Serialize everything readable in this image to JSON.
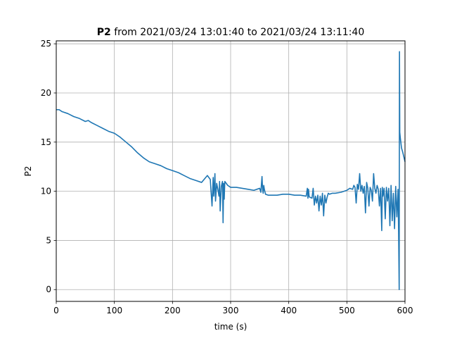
{
  "chart_data": {
    "type": "line",
    "title_series": "P2",
    "title_rest": " from 2021/03/24 13:01:40 to 2021/03/24 13:11:40",
    "xlabel": "time (s)",
    "ylabel": "P2",
    "xlim": [
      0,
      600
    ],
    "ylim": [
      -1.2,
      25.3
    ],
    "x_ticks": [
      0,
      100,
      200,
      300,
      400,
      500,
      600
    ],
    "y_ticks": [
      0,
      5,
      10,
      15,
      20,
      25
    ],
    "grid": true,
    "line_color": "#1f77b4",
    "series": [
      {
        "x": [
          0,
          5,
          10,
          20,
          30,
          40,
          50,
          55,
          60,
          70,
          80,
          90,
          100,
          110,
          120,
          130,
          140,
          150,
          160,
          170,
          180,
          190,
          200,
          210,
          220,
          230,
          240,
          250,
          260,
          265,
          268,
          270,
          271,
          272,
          273,
          274,
          276,
          278,
          280,
          281,
          282,
          284,
          286,
          287,
          288,
          289,
          290,
          295,
          300,
          310,
          320,
          330,
          340,
          350,
          352,
          354,
          355,
          356,
          357,
          358,
          360,
          365,
          370,
          380,
          390,
          400,
          410,
          420,
          430,
          432,
          433,
          434,
          435,
          436,
          440,
          442,
          444,
          446,
          448,
          450,
          452,
          454,
          456,
          458,
          460,
          462,
          464,
          466,
          468,
          470,
          475,
          480,
          490,
          500,
          505,
          510,
          512,
          514,
          516,
          518,
          520,
          522,
          524,
          526,
          528,
          530,
          532,
          534,
          536,
          538,
          540,
          542,
          544,
          546,
          548,
          550,
          552,
          554,
          556,
          558,
          560,
          561,
          562,
          564,
          566,
          568,
          570,
          572,
          574,
          576,
          578,
          580,
          582,
          584,
          586,
          588,
          589,
          590,
          590.5,
          591,
          592,
          594,
          596,
          598,
          600
        ],
        "y": [
          18.3,
          18.3,
          18.1,
          17.9,
          17.6,
          17.4,
          17.1,
          17.2,
          17.0,
          16.7,
          16.4,
          16.1,
          15.9,
          15.5,
          15.0,
          14.5,
          13.9,
          13.4,
          13.0,
          12.8,
          12.6,
          12.3,
          12.1,
          11.9,
          11.6,
          11.3,
          11.1,
          10.9,
          11.6,
          11.2,
          8.5,
          11.4,
          9.5,
          10.5,
          11.8,
          9.0,
          10.8,
          10.2,
          9.5,
          11.0,
          8.0,
          10.5,
          11.0,
          6.8,
          10.8,
          9.2,
          11.0,
          10.6,
          10.4,
          10.4,
          10.3,
          10.2,
          10.1,
          10.3,
          9.9,
          11.5,
          10.2,
          9.8,
          10.6,
          10.2,
          9.7,
          9.6,
          9.6,
          9.6,
          9.7,
          9.7,
          9.6,
          9.6,
          9.5,
          10.3,
          9.3,
          10.2,
          9.5,
          9.4,
          9.3,
          10.3,
          8.6,
          9.5,
          8.8,
          9.6,
          8.0,
          9.5,
          8.6,
          9.8,
          7.5,
          9.6,
          8.8,
          9.4,
          9.8,
          9.7,
          9.8,
          9.8,
          9.9,
          10.1,
          10.3,
          10.2,
          10.6,
          10.4,
          8.8,
          10.7,
          10.2,
          11.8,
          10.0,
          10.6,
          9.8,
          10.5,
          7.8,
          10.9,
          10.3,
          8.5,
          10.4,
          10.1,
          9.0,
          11.8,
          10.3,
          9.8,
          10.6,
          10.2,
          8.5,
          10.3,
          6.0,
          10.4,
          9.5,
          10.3,
          7.2,
          10.4,
          9.0,
          10.3,
          6.5,
          10.6,
          7.0,
          9.8,
          6.2,
          10.5,
          7.4,
          10.2,
          5.8,
          0.0,
          24.2,
          16.0,
          15.4,
          14.4,
          14.0,
          13.5,
          13.0
        ]
      }
    ]
  }
}
